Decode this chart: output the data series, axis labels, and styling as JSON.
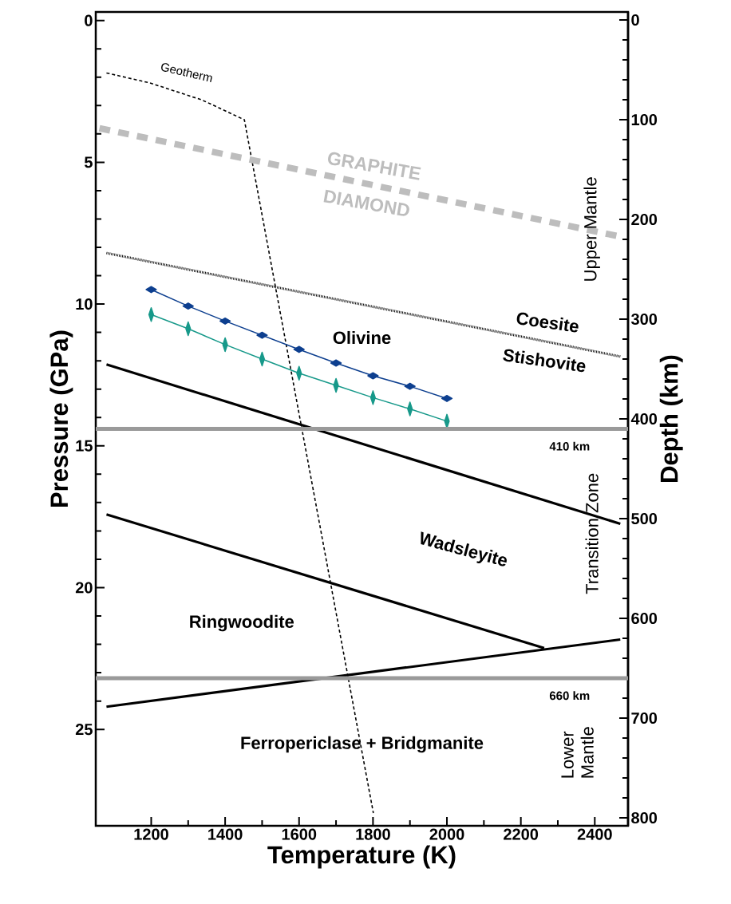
{
  "chart_data": {
    "type": "line",
    "xlabel": "Temperature (K)",
    "ylabel": "Pressure (GPa)",
    "y2label": "Depth (km)",
    "xlim": [
      1050,
      2490
    ],
    "xticks": [
      1200,
      1400,
      1600,
      1800,
      2000,
      2200,
      2400
    ],
    "ylim": [
      28.4,
      -0.3
    ],
    "yticks": [
      0,
      5,
      10,
      15,
      20,
      25
    ],
    "y2lim": [
      808,
      -8
    ],
    "y2ticks": [
      0,
      100,
      200,
      300,
      400,
      500,
      600,
      700,
      800
    ],
    "series": [
      {
        "color": "#000000",
        "line_style": "dashed",
        "x": [
          1079,
          1196,
          1337,
          1452,
          1801
        ],
        "values": [
          1.85,
          2.2,
          2.8,
          3.5,
          27.95
        ]
      },
      {
        "color": "#bdbdbd",
        "line_style": "dashed",
        "x": [
          1060,
          2480
        ],
        "values": [
          3.8,
          7.65
        ]
      },
      {
        "color": "#000000",
        "line_style": "dotted",
        "x": [
          1079,
          2469
        ],
        "values": [
          8.2,
          11.85
        ]
      },
      {
        "color": "#0d3f8f",
        "line_style": "solid",
        "marker": "diamond",
        "x": [
          1200,
          1300,
          1400,
          1500,
          1600,
          1700,
          1800,
          1900,
          2000
        ],
        "values": [
          9.49,
          10.07,
          10.6,
          11.1,
          11.6,
          12.08,
          12.53,
          12.9,
          13.33
        ]
      },
      {
        "color": "#17998a",
        "line_style": "solid",
        "marker": "diamond",
        "x": [
          1200,
          1300,
          1400,
          1500,
          1600,
          1700,
          1800,
          1900,
          2000
        ],
        "values": [
          10.37,
          10.87,
          11.43,
          11.94,
          12.44,
          12.87,
          13.3,
          13.7,
          14.13
        ]
      },
      {
        "color": "#000000",
        "line_style": "solid",
        "x": [
          1079,
          2469
        ],
        "values": [
          12.13,
          17.75
        ]
      },
      {
        "color": "#000000",
        "line_style": "solid",
        "x": [
          1079,
          2263
        ],
        "values": [
          17.42,
          22.13
        ]
      },
      {
        "color": "#000000",
        "line_style": "solid",
        "x": [
          1079,
          2469
        ],
        "values": [
          24.2,
          21.83
        ]
      }
    ],
    "ref_lines": [
      {
        "axis": "y2",
        "value": 410,
        "label": "410 km",
        "color": "#9a9a9a"
      },
      {
        "axis": "y2",
        "value": 660,
        "label": "660 km",
        "color": "#9a9a9a"
      }
    ],
    "annotations": [
      "Geotherm",
      "GRAPHITE",
      "DIAMOND",
      "Upper Mantle",
      "Coesite",
      "Stishovite",
      "Olivine",
      "Transition Zone",
      "Wadsleyite",
      "Ringwoodite",
      "Ferropericlase + Bridgmanite",
      "Lower Mantle"
    ]
  }
}
